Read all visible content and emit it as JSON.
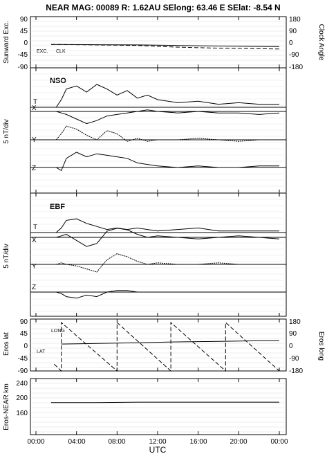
{
  "header": {
    "title": "NEAR MAG: 00089  R: 1.62AU  SElong:   63.46 E  SElat:   -8.54 N"
  },
  "chart_data": [
    {
      "type": "line",
      "ylabel_left": "Sunward Exc.",
      "ylabel_right": "Clock Angle",
      "yticks_left": [
        "90",
        "45",
        "0",
        "-45",
        "-90"
      ],
      "yticks_right": [
        "180",
        "90",
        "0",
        "-90",
        "-180"
      ],
      "ylim_left": [
        -90,
        90
      ],
      "ylim_right": [
        -180,
        180
      ],
      "annotations": [
        "EXC.",
        "CLK"
      ],
      "series": [
        {
          "name": "EXC.",
          "x": [
            1.5,
            6,
            10,
            14,
            18,
            24
          ],
          "y": [
            -3,
            -4,
            -5,
            -7,
            -9,
            -11
          ]
        },
        {
          "name": "CLK",
          "x": [
            1.5,
            6,
            10,
            14,
            18,
            24
          ],
          "y": [
            -6,
            -10,
            -14,
            -26,
            -34,
            -40
          ]
        }
      ]
    },
    {
      "type": "line",
      "title": "NSO",
      "ylabel": "5 nT/div",
      "series": [
        {
          "name": "T",
          "x": [
            1,
            2,
            2.5,
            3,
            4,
            5,
            6,
            7,
            8,
            9,
            10,
            11,
            12,
            14,
            16,
            18,
            20,
            22,
            24
          ],
          "y": [
            0,
            0,
            5,
            12,
            14,
            10,
            15,
            12,
            8,
            11,
            6,
            8,
            5,
            3,
            4,
            2,
            3,
            2,
            2
          ]
        },
        {
          "name": "X",
          "x": [
            1,
            2,
            2.5,
            3,
            4,
            5,
            6,
            7,
            8,
            9,
            10,
            11,
            12,
            14,
            16,
            18,
            20,
            22,
            24
          ],
          "y": [
            0,
            0,
            -1,
            -2,
            -5,
            -8,
            -6,
            -3,
            -2,
            -1,
            0,
            1,
            0,
            -1,
            0,
            -1,
            -1,
            -2,
            -1
          ]
        },
        {
          "name": "Y",
          "x": [
            1,
            2,
            2.5,
            3,
            4,
            5,
            6,
            7,
            8,
            9,
            10,
            11,
            12,
            14,
            16,
            18,
            20,
            22,
            24
          ],
          "y": [
            0,
            0,
            4,
            9,
            7,
            3,
            0,
            6,
            4,
            -1,
            1,
            -1,
            0,
            0,
            1,
            0,
            -1,
            0,
            0
          ]
        },
        {
          "name": "Z",
          "x": [
            1,
            2,
            2.5,
            3,
            4,
            5,
            6,
            7,
            8,
            9,
            10,
            11,
            12,
            14,
            16,
            18,
            20,
            22,
            24
          ],
          "y": [
            0,
            0,
            -2,
            6,
            10,
            7,
            9,
            8,
            7,
            6,
            3,
            2,
            1,
            0,
            1,
            0,
            0,
            1,
            1
          ]
        }
      ]
    },
    {
      "type": "line",
      "title": "EBF",
      "ylabel": "5 nT/div",
      "series": [
        {
          "name": "T",
          "x": [
            1,
            2,
            2.5,
            3,
            4,
            5,
            6,
            7,
            8,
            9,
            10,
            11,
            12,
            14,
            16,
            18,
            20,
            22,
            24
          ],
          "y": [
            0,
            0,
            3,
            8,
            9,
            6,
            4,
            2,
            3,
            2,
            3,
            2,
            1,
            2,
            3,
            1,
            1,
            1,
            1
          ]
        },
        {
          "name": "X",
          "x": [
            1,
            2,
            2.5,
            3,
            4,
            5,
            6,
            7,
            8,
            9,
            10,
            11,
            12,
            14,
            16,
            18,
            20,
            22,
            24
          ],
          "y": [
            0,
            0,
            1,
            2,
            -2,
            -6,
            -4,
            4,
            6,
            5,
            2,
            0,
            1,
            0,
            -1,
            0,
            1,
            0,
            -1
          ]
        },
        {
          "name": "Y",
          "x": [
            1,
            2,
            2.5,
            3,
            4,
            5,
            6,
            7,
            8,
            9,
            10,
            11,
            12,
            14,
            16,
            18,
            20,
            22,
            24
          ],
          "y": [
            0,
            0,
            1,
            0,
            -1,
            -3,
            -5,
            3,
            7,
            5,
            2,
            0,
            1,
            0,
            0,
            1,
            0,
            0,
            0
          ]
        },
        {
          "name": "Z",
          "x": [
            1,
            2,
            2.5,
            3,
            4,
            5,
            6,
            7,
            8,
            9,
            10,
            11,
            12,
            14,
            16,
            18,
            20,
            22,
            24
          ],
          "y": [
            0,
            0,
            -1,
            -3,
            -4,
            -2,
            -3,
            0,
            1,
            1,
            0,
            0,
            0,
            0,
            0,
            0,
            0,
            0,
            0
          ]
        }
      ]
    },
    {
      "type": "line",
      "ylabel_left": "Eros lat",
      "ylabel_right": "Eros long",
      "yticks_left": [
        "90",
        "45",
        "0",
        "-45",
        "-90"
      ],
      "yticks_right": [
        "180",
        "90",
        "0",
        "-90",
        "-180"
      ],
      "ylim_left": [
        -90,
        90
      ],
      "ylim_right": [
        -180,
        180
      ],
      "annotations": [
        "LONG",
        "LAT"
      ],
      "series": [
        {
          "name": "LAT",
          "x": [
            2.5,
            6,
            10,
            14,
            18,
            22,
            24
          ],
          "y": [
            10,
            12,
            15,
            18,
            20,
            22,
            22
          ]
        },
        {
          "name": "LONG",
          "x": [
            1.8,
            2.5,
            2.5,
            8,
            8,
            13.3,
            13.3,
            18.7,
            18.7,
            24
          ],
          "y": [
            -130,
            -180,
            180,
            -180,
            180,
            -180,
            180,
            -180,
            180,
            -180
          ]
        }
      ]
    },
    {
      "type": "line",
      "ylabel": "Eros-NEAR km",
      "yticks": [
        "240",
        "200",
        "160"
      ],
      "ylim": [
        120,
        260
      ],
      "series": [
        {
          "name": "Eros-NEAR",
          "x": [
            1.5,
            6,
            10,
            14,
            18,
            24
          ],
          "y": [
            200,
            200,
            201,
            201,
            201,
            201
          ]
        }
      ]
    }
  ],
  "x_axis": {
    "ticks": [
      "00:00",
      "04:00",
      "08:00",
      "12:00",
      "16:00",
      "20:00",
      "00:00"
    ],
    "tick_hours": [
      0,
      4,
      8,
      12,
      16,
      20,
      24
    ],
    "xlim": [
      0,
      24
    ],
    "label": "UTC"
  }
}
